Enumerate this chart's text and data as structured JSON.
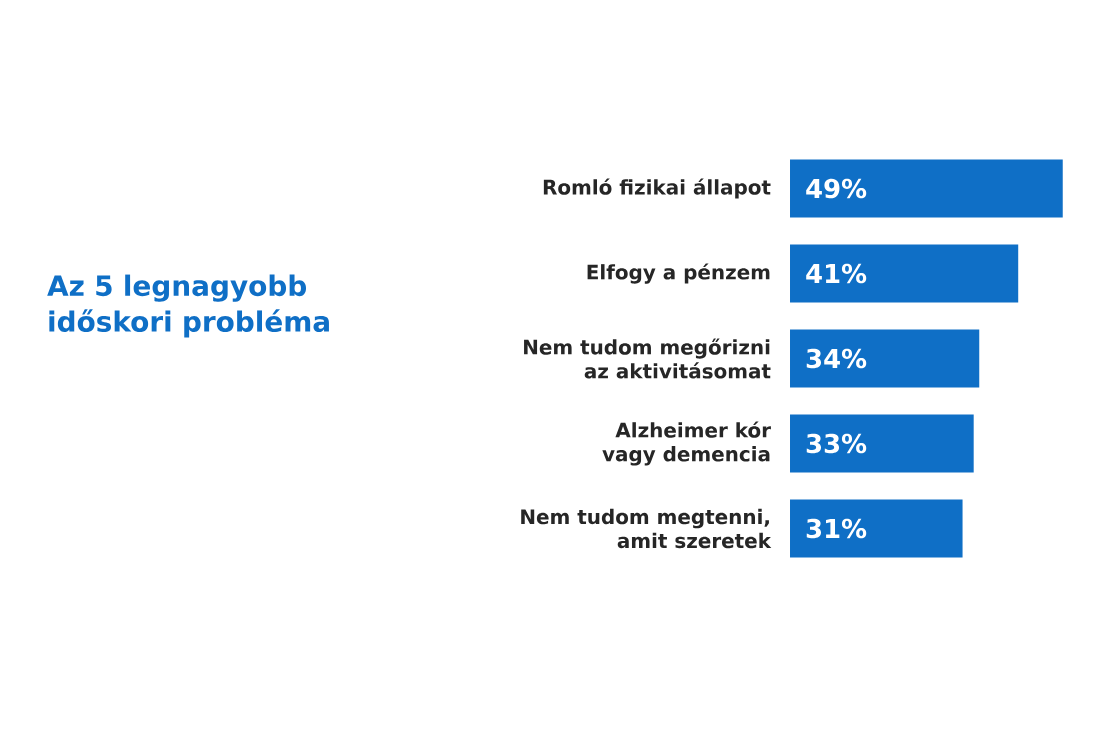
{
  "chart_data": {
    "type": "bar",
    "orientation": "horizontal",
    "title": "Az 5 legnagyobb időskori probléma",
    "categories": [
      "Romló fizikai állapot",
      "Elfogy a pénzem",
      "Nem tudom megőrizni\naz aktivitásomat",
      "Alzheimer kór\nvagy demencia",
      "Nem tudom megtenni,\namit szeretek"
    ],
    "values": [
      49,
      41,
      34,
      33,
      31
    ],
    "value_labels": [
      "49%",
      "41%",
      "34%",
      "33%",
      "31%"
    ],
    "color": "#0f6fc6"
  }
}
